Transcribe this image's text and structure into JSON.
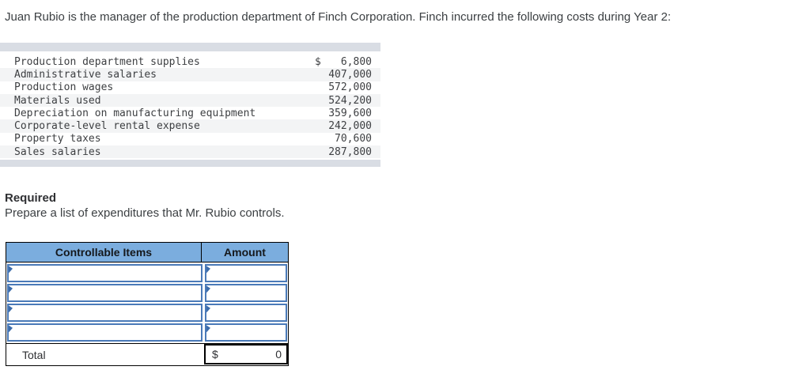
{
  "intro": "Juan Rubio is the manager of the production department of Finch Corporation. Finch incurred the following costs during Year 2:",
  "cost_table": {
    "rows": [
      {
        "label": "Production department supplies",
        "currency": "$",
        "amount": "6,800"
      },
      {
        "label": "Administrative salaries",
        "currency": "",
        "amount": "407,000"
      },
      {
        "label": "Production wages",
        "currency": "",
        "amount": "572,000"
      },
      {
        "label": "Materials used",
        "currency": "",
        "amount": "524,200"
      },
      {
        "label": "Depreciation on manufacturing equipment",
        "currency": "",
        "amount": "359,600"
      },
      {
        "label": "Corporate-level rental expense",
        "currency": "",
        "amount": "242,000"
      },
      {
        "label": "Property taxes",
        "currency": "",
        "amount": "70,600"
      },
      {
        "label": "Sales salaries",
        "currency": "",
        "amount": "287,800"
      }
    ]
  },
  "required": {
    "heading": "Required",
    "instruction": "Prepare a list of expenditures that Mr. Rubio controls."
  },
  "answer_table": {
    "col1_header": "Controllable Items",
    "col2_header": "Amount",
    "visible_input_rows": 4,
    "total": {
      "label": "Total",
      "currency": "$",
      "value": "0"
    }
  },
  "colors": {
    "header_blue": "#7badde",
    "input_border_blue": "#4a7ab8",
    "marker_blue": "#3c6cab",
    "table_band_gray": "#d9dde4",
    "row_stripe_gray": "#f3f4f5"
  }
}
